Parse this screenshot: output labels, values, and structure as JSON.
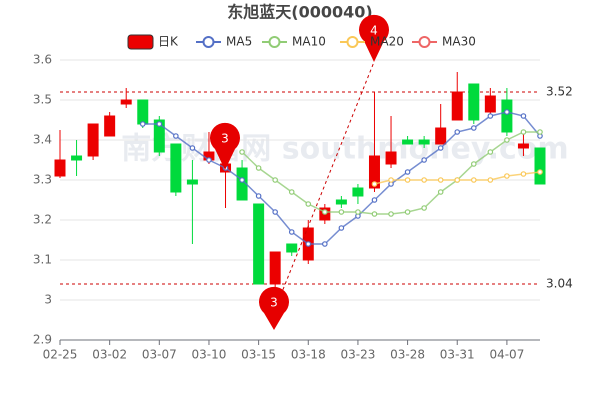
{
  "chart_data": {
    "type": "candlestick",
    "title": "东旭蓝天(000040)",
    "watermark": "南方财富网 southmoney.com",
    "categories": [
      "02-25",
      null,
      null,
      "03-02",
      null,
      null,
      "03-07",
      null,
      null,
      "03-10",
      null,
      null,
      "03-15",
      null,
      null,
      "03-18",
      null,
      null,
      "03-23",
      null,
      null,
      "03-28",
      null,
      null,
      "03-31",
      null,
      null,
      "04-07",
      null,
      null
    ],
    "ylim": [
      2.9,
      3.6
    ],
    "yticks": [
      2.9,
      3,
      3.1,
      3.2,
      3.3,
      3.4,
      3.5,
      3.6
    ],
    "grid": true,
    "candles": {
      "name": "日K",
      "up_color": "#ec0000",
      "down_color": "#00da3c",
      "open": [
        3.31,
        3.36,
        3.36,
        3.41,
        3.49,
        3.5,
        3.45,
        3.39,
        3.3,
        3.35,
        3.32,
        3.33,
        3.24,
        3.04,
        3.14,
        3.1,
        3.2,
        3.25,
        3.28,
        3.28,
        3.34,
        3.4,
        3.4,
        3.39,
        3.45,
        3.54,
        3.47,
        3.5,
        3.38,
        3.38
      ],
      "close": [
        3.35,
        3.35,
        3.44,
        3.46,
        3.5,
        3.44,
        3.37,
        3.27,
        3.29,
        3.37,
        3.34,
        3.25,
        3.04,
        3.12,
        3.12,
        3.18,
        3.23,
        3.24,
        3.26,
        3.36,
        3.37,
        3.39,
        3.39,
        3.43,
        3.52,
        3.45,
        3.51,
        3.42,
        3.39,
        3.29
      ],
      "low": [
        3.305,
        3.31,
        3.35,
        3.41,
        3.48,
        3.43,
        3.36,
        3.26,
        3.14,
        3.34,
        3.23,
        3.25,
        3.04,
        2.96,
        3.11,
        3.09,
        3.19,
        3.23,
        3.24,
        3.27,
        3.33,
        3.39,
        3.38,
        3.39,
        3.45,
        3.44,
        3.46,
        3.41,
        3.36,
        3.29
      ],
      "high": [
        3.425,
        3.4,
        3.44,
        3.47,
        3.53,
        3.5,
        3.46,
        3.39,
        3.35,
        3.42,
        3.37,
        3.35,
        3.24,
        3.12,
        3.14,
        3.2,
        3.24,
        3.26,
        3.29,
        3.52,
        3.46,
        3.41,
        3.41,
        3.49,
        3.57,
        3.54,
        3.53,
        3.53,
        3.42,
        3.38
      ]
    },
    "series": [
      {
        "name": "MA5",
        "color": "#5470c6",
        "values": [
          null,
          null,
          null,
          null,
          null,
          3.44,
          3.44,
          3.41,
          3.38,
          3.35,
          3.33,
          3.3,
          3.26,
          3.22,
          3.17,
          3.14,
          3.14,
          3.18,
          3.21,
          3.25,
          3.29,
          3.32,
          3.35,
          3.38,
          3.42,
          3.43,
          3.46,
          3.47,
          3.46,
          3.41
        ]
      },
      {
        "name": "MA10",
        "color": "#91cc75",
        "values": [
          null,
          null,
          null,
          null,
          null,
          null,
          null,
          null,
          null,
          null,
          null,
          3.37,
          3.33,
          3.3,
          3.27,
          3.24,
          3.22,
          3.22,
          3.22,
          3.215,
          3.215,
          3.22,
          3.23,
          3.27,
          3.3,
          3.34,
          3.37,
          3.4,
          3.42,
          3.42
        ]
      },
      {
        "name": "MA20",
        "color": "#fac858",
        "values": [
          null,
          null,
          null,
          null,
          null,
          null,
          null,
          null,
          null,
          null,
          null,
          null,
          null,
          null,
          null,
          null,
          null,
          null,
          null,
          3.29,
          3.3,
          3.3,
          3.3,
          3.3,
          3.3,
          3.3,
          3.3,
          3.31,
          3.315,
          3.32
        ]
      },
      {
        "name": "MA30",
        "color": "#ee6666",
        "values": [
          null,
          null,
          null,
          null,
          null,
          null,
          null,
          null,
          null,
          null,
          null,
          null,
          null,
          null,
          null,
          null,
          null,
          null,
          null,
          null,
          null,
          null,
          null,
          null,
          null,
          null,
          null,
          null,
          null,
          null
        ]
      }
    ],
    "ref_lines": [
      {
        "value": 3.52,
        "label": "3.52"
      },
      {
        "value": 3.04,
        "label": "3.04"
      }
    ],
    "pins": [
      {
        "label": "3"
      },
      {
        "label": "3"
      },
      {
        "label": "4"
      }
    ]
  }
}
